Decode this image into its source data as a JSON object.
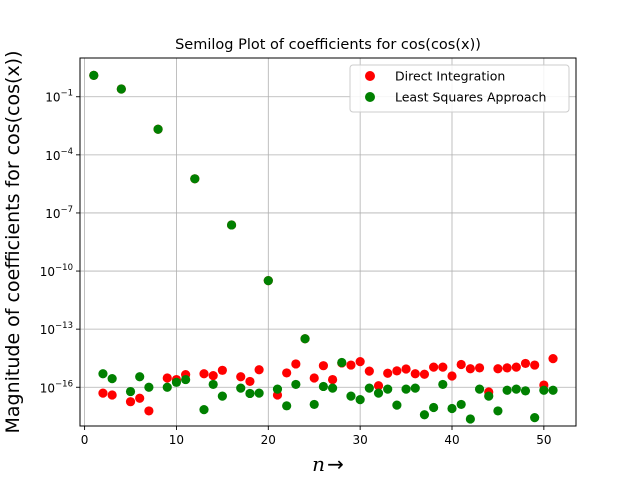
{
  "chart_data": {
    "type": "scatter",
    "title": "Semilog Plot of coefficients for cos(cos(x))",
    "xlabel": "n",
    "xlabel_suffix": "→",
    "ylabel": "Magnitude of coefficients for cos(cos(x))",
    "yscale": "log",
    "xlim": [
      -0.5,
      53.5
    ],
    "ylim": [
      1e-18,
      10
    ],
    "xticks": [
      0,
      10,
      20,
      30,
      40,
      50
    ],
    "xtick_labels": [
      "0",
      "10",
      "20",
      "30",
      "40",
      "50"
    ],
    "yticks": [
      1e-16,
      1e-13,
      1e-10,
      1e-07,
      0.0001,
      0.1
    ],
    "ytick_labels": [
      {
        "base": "10",
        "exp": "−16"
      },
      {
        "base": "10",
        "exp": "−13"
      },
      {
        "base": "10",
        "exp": "−10"
      },
      {
        "base": "10",
        "exp": "−7"
      },
      {
        "base": "10",
        "exp": "−4"
      },
      {
        "base": "10",
        "exp": "−1"
      }
    ],
    "grid": true,
    "legend_position": "top-right",
    "series": [
      {
        "name": "Direct Integration",
        "color": "#ff0000",
        "x": [
          1,
          2,
          3,
          4,
          5,
          6,
          7,
          8,
          9,
          10,
          11,
          12,
          13,
          14,
          15,
          16,
          17,
          18,
          19,
          20,
          21,
          22,
          23,
          24,
          25,
          26,
          27,
          28,
          29,
          30,
          31,
          32,
          33,
          34,
          35,
          36,
          37,
          38,
          39,
          40,
          41,
          42,
          43,
          44,
          45,
          46,
          47,
          48,
          49,
          50,
          51
        ],
        "y": [
          1.27,
          5e-17,
          4e-17,
          0.25,
          1.8e-17,
          2.7e-17,
          6e-18,
          0.0021,
          3e-16,
          2.5e-16,
          4.5e-16,
          5.8e-06,
          5e-16,
          4e-16,
          7.5e-16,
          2.4e-08,
          3.5e-16,
          2e-16,
          8e-16,
          3.2e-11,
          4e-17,
          5.5e-16,
          1.6e-15,
          3.2e-14,
          3e-16,
          1.3e-15,
          2.5e-16,
          1.8e-15,
          1.4e-15,
          2.1e-15,
          6.8e-16,
          1.2e-16,
          5.3e-16,
          7e-16,
          8.8e-16,
          5e-16,
          4.7e-16,
          1.1e-15,
          1.1e-15,
          3.8e-16,
          1.5e-15,
          9e-16,
          1e-15,
          5.7e-17,
          9e-16,
          1e-15,
          1.1e-15,
          1.7e-15,
          1.4e-15,
          1.3e-16,
          3e-15
        ]
      },
      {
        "name": "Least Squares Approach",
        "color": "#008000",
        "x": [
          1,
          2,
          3,
          4,
          5,
          6,
          7,
          8,
          9,
          10,
          11,
          12,
          13,
          14,
          15,
          16,
          17,
          18,
          19,
          20,
          21,
          22,
          23,
          24,
          25,
          26,
          27,
          28,
          29,
          30,
          31,
          32,
          33,
          34,
          35,
          36,
          37,
          38,
          39,
          40,
          41,
          42,
          43,
          44,
          45,
          46,
          47,
          48,
          49,
          50,
          51
        ],
        "y": [
          1.27,
          5e-16,
          2.8e-16,
          0.25,
          6e-17,
          3.5e-16,
          1e-16,
          0.0021,
          1e-16,
          1.8e-16,
          2.5e-16,
          5.8e-06,
          7e-18,
          1.4e-16,
          3.5e-17,
          2.4e-08,
          9e-17,
          4.8e-17,
          5e-17,
          3.2e-11,
          8e-17,
          1.1e-17,
          1.4e-16,
          3.2e-14,
          1.3e-17,
          1.1e-16,
          9e-17,
          1.9e-15,
          3.5e-17,
          2.3e-17,
          9e-17,
          5e-17,
          8e-17,
          1.2e-17,
          8e-17,
          9e-17,
          3.8e-18,
          9e-18,
          1.4e-16,
          8e-18,
          1.3e-17,
          2.3e-18,
          8e-17,
          3.5e-17,
          6e-18,
          7e-17,
          8e-17,
          6.5e-17,
          2.7e-18,
          7e-17,
          7e-17
        ]
      }
    ]
  }
}
